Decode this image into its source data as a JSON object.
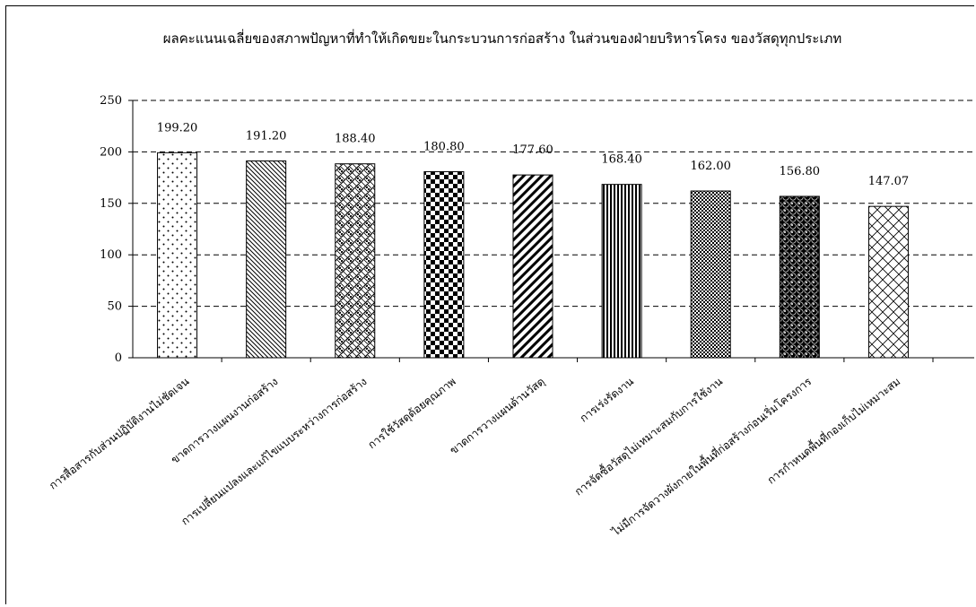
{
  "chart_data": {
    "type": "bar",
    "title": "ผลคะแนนเฉลี่ยของสภาพปัญหาที่ทำให้เกิดขยะในกระบวนการก่อสร้าง ในส่วนของฝ่ายบริหารโครง ของวัสดุทุกประเภท",
    "xlabel": "",
    "ylabel": "",
    "ylim": [
      0,
      250
    ],
    "yticks": [
      0,
      50,
      100,
      150,
      200,
      250
    ],
    "grid": true,
    "legend": "none",
    "categories": [
      "การสื่อสารกับส่วนปฏิบัติงานไม่ชัดเจน",
      "ขาดการวางแผนงานก่อสร้าง",
      "การเปลี่ยนแปลงและแก้ไขแบบระหว่างการก่อสร้าง",
      "การใช้วัสดุด้อยคุณภาพ",
      "ขาดการวางแผนด้านวัสดุ",
      "การเร่งรัดงาน",
      "การจัดซื้อวัสดุไม่เหมาะสมกับการใช้งาน",
      "ไม่มีการจัดวางผังกายในพื้นที่ก่อสร้างก่อนเริ่มโครงการ",
      "การกำหนดพื้นที่กองเก็บไม่เหมาะสม"
    ],
    "value_labels": [
      "199.20",
      "191.20",
      "188.40",
      "180.80",
      "177.60",
      "168.40",
      "162.00",
      "156.80",
      "147.07"
    ],
    "values": [
      199.2,
      191.2,
      188.4,
      180.8,
      177.6,
      168.4,
      162.0,
      156.8,
      147.07
    ],
    "patterns": [
      "dots",
      "diag-thin",
      "weave",
      "checker",
      "diag-thick",
      "vertical",
      "small-checker",
      "spheres",
      "lattice"
    ],
    "colors": {
      "bar_stroke": "#000000",
      "bar_fill": "#ffffff",
      "grid": "#000000",
      "text": "#000000"
    }
  }
}
